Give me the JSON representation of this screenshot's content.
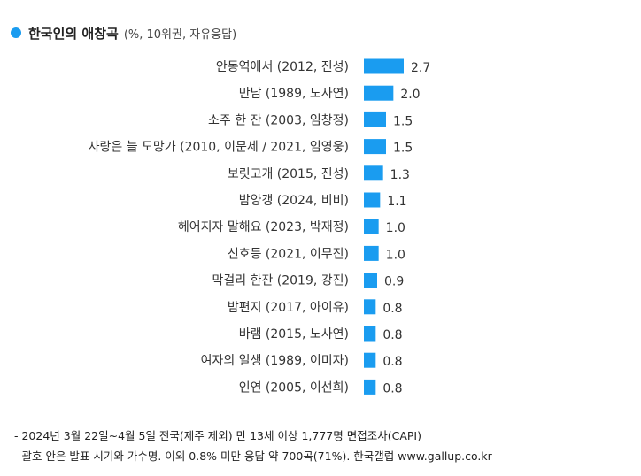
{
  "colors": {
    "bar": "#1a9cf0",
    "dot": "#1a9cf0"
  },
  "chart_data": {
    "type": "bar",
    "orientation": "horizontal",
    "title": "한국인의 애창곡",
    "subtitle": "(%, 10위권, 자유응답)",
    "categories": [
      "안동역에서 (2012, 진성)",
      "만남 (1989, 노사연)",
      "소주 한 잔 (2003, 임창정)",
      "사랑은 늘 도망가 (2010, 이문세 / 2021, 임영웅)",
      "보릿고개 (2015, 진성)",
      "밤양갱 (2024, 비비)",
      "헤어지자 말해요 (2023, 박재정)",
      "신호등 (2021, 이무진)",
      "막걸리 한잔 (2019, 강진)",
      "밤편지 (2017, 아이유)",
      "바램 (2015, 노사연)",
      "여자의 일생 (1989, 이미자)",
      "인연 (2005, 이선희)"
    ],
    "values": [
      2.7,
      2.0,
      1.5,
      1.5,
      1.3,
      1.1,
      1.0,
      1.0,
      0.9,
      0.8,
      0.8,
      0.8,
      0.8
    ],
    "value_labels": [
      "2.7",
      "2.0",
      "1.5",
      "1.5",
      "1.3",
      "1.1",
      "1.0",
      "1.0",
      "0.9",
      "0.8",
      "0.8",
      "0.8",
      "0.8"
    ],
    "grid": false,
    "legend": "none"
  },
  "notes": [
    "- 2024년 3월 22일~4월 5일 전국(제주 제외) 만 13세 이상 1,777명 면접조사(CAPI)",
    "- 괄호 안은 발표 시기와 가수명. 이외 0.8% 미만 응답 약 700곡(71%). 한국갤럽 www.gallup.co.kr"
  ]
}
